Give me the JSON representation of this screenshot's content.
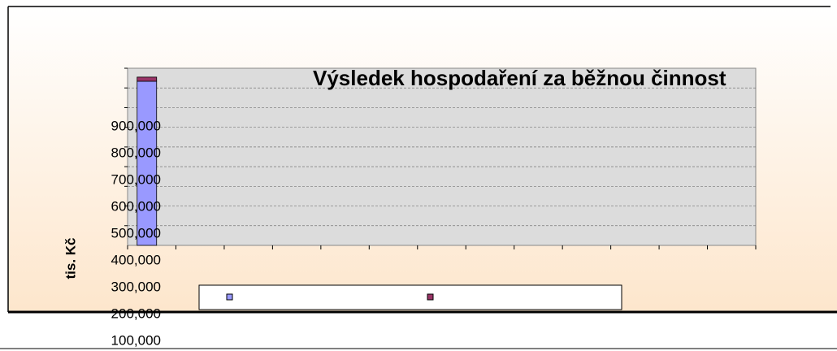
{
  "chart_data": {
    "type": "bar",
    "stacked": true,
    "title": "Výsledek hospodaření za běžnou činnost",
    "y_label": "tis. Kč",
    "categories": [
      null,
      null,
      null,
      null,
      null,
      null,
      null,
      null,
      null,
      null,
      null,
      null,
      null
    ],
    "series": [
      {
        "color": "#9999ff",
        "values": [
          834000,
          null,
          null,
          null,
          null,
          null,
          null,
          null,
          null,
          null,
          null,
          null,
          null
        ]
      },
      {
        "color": "#993366",
        "values": [
          21000,
          null,
          null,
          null,
          null,
          null,
          null,
          null,
          null,
          null,
          null,
          null,
          null
        ]
      }
    ],
    "ylim": [
      0,
      900000
    ],
    "yticks": [
      {
        "value": 900000,
        "label": "900,000"
      },
      {
        "value": 800000,
        "label": "800,000"
      },
      {
        "value": 700000,
        "label": "700,000"
      },
      {
        "value": 600000,
        "label": "600,000"
      },
      {
        "value": 500000,
        "label": "500,000"
      },
      {
        "value": 400000,
        "label": "400,000"
      },
      {
        "value": 300000,
        "label": "300,000"
      },
      {
        "value": 200000,
        "label": "200,000"
      },
      {
        "value": 100000,
        "label": "100,000"
      }
    ],
    "grid": true
  }
}
